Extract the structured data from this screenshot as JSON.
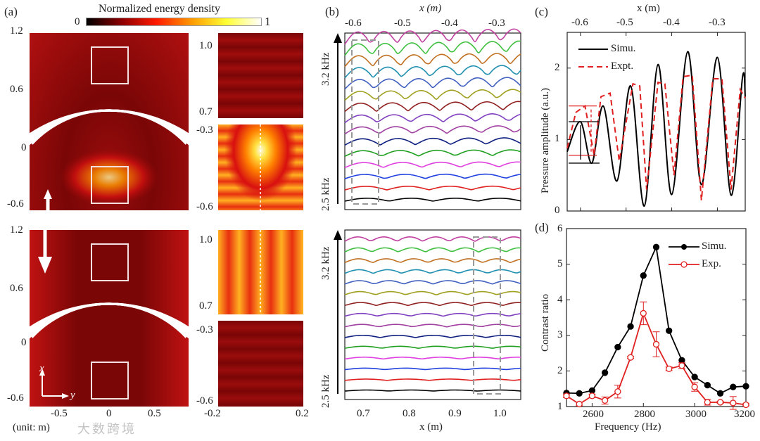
{
  "panel_labels": {
    "a": "(a)",
    "b": "(b)",
    "c": "(c)",
    "d": "(d)"
  },
  "colorbar": {
    "title": "Normalized energy density",
    "min": "0",
    "max": "1",
    "colors": [
      "#000000",
      "#8b0000",
      "#ff1a00",
      "#ff9900",
      "#ffff33",
      "#ffffff"
    ]
  },
  "panel_a": {
    "top_y_ticks": [
      "1.2",
      "0.6",
      "0",
      "-0.6"
    ],
    "bottom_y_ticks": [
      "1.2",
      "0.6",
      "0",
      "-0.6"
    ],
    "x_ticks": [
      "-0.5",
      "0",
      "0.5"
    ],
    "unit_label": "(unit: m)",
    "axis_x": "x",
    "axis_y": "y",
    "zoom_top_upper_ticks": [
      "1.0",
      "0.7"
    ],
    "zoom_top_lower_ticks": [
      "-0.3",
      "-0.6"
    ],
    "zoom_bottom_upper_ticks": [
      "1.0",
      "0.7"
    ],
    "zoom_bottom_lower_ticks": [
      "-0.3",
      "-0.6"
    ],
    "zoom_x_ticks": [
      "-0.2",
      "0.2"
    ]
  },
  "panel_b": {
    "top_x_label": "x (m)",
    "top_x_ticks": [
      "-0.6",
      "-0.5",
      "-0.4",
      "-0.3"
    ],
    "bottom_x_label": "x (m)",
    "bottom_x_ticks": [
      "0.7",
      "0.8",
      "0.9",
      "1.0"
    ],
    "freq_high": "3.2 kHz",
    "freq_low": "2.5 kHz",
    "line_colors": [
      "#000000",
      "#e02020",
      "#2040e0",
      "#e040e0",
      "#20a020",
      "#102080",
      "#a040a0",
      "#8040c0",
      "#902020",
      "#a0a020",
      "#4060c0",
      "#2090b0",
      "#c07020",
      "#40c040",
      "#c040a0"
    ]
  },
  "watermark": "大数跨境",
  "chart_data": [
    {
      "id": "c",
      "type": "line",
      "title": "",
      "xlabel": "x (m)",
      "ylabel": "Pressure amplitude (a.u.)",
      "xlim": [
        -0.629,
        -0.239
      ],
      "ylim": [
        0,
        2.5
      ],
      "x_ticks": [
        "-0.6",
        "-0.5",
        "-0.4",
        "-0.3"
      ],
      "x_tick_values": [
        -0.6,
        -0.5,
        -0.4,
        -0.3
      ],
      "y_ticks": [
        "0",
        "1",
        "2"
      ],
      "y_tick_values": [
        0,
        1,
        2
      ],
      "legend_position": "top-left",
      "series": [
        {
          "name": "Simu.",
          "color": "#000000",
          "style": "solid",
          "x": [
            -0.629,
            -0.6,
            -0.575,
            -0.55,
            -0.52,
            -0.49,
            -0.46,
            -0.43,
            -0.4,
            -0.365,
            -0.335,
            -0.3,
            -0.27,
            -0.245,
            -0.239
          ],
          "y": [
            0.83,
            1.25,
            0.67,
            1.47,
            0.42,
            1.75,
            0.07,
            2.05,
            0.23,
            2.23,
            0.37,
            2.15,
            0.22,
            1.87,
            1.6
          ]
        },
        {
          "name": "Expt.",
          "color": "#e02020",
          "style": "dashed",
          "x": [
            -0.629,
            -0.61,
            -0.59,
            -0.57,
            -0.555,
            -0.535,
            -0.515,
            -0.485,
            -0.47,
            -0.455,
            -0.43,
            -0.415,
            -0.395,
            -0.375,
            -0.355,
            -0.335,
            -0.31,
            -0.29,
            -0.27,
            -0.25,
            -0.239
          ],
          "y": [
            0.88,
            1.38,
            1.47,
            0.78,
            1.6,
            1.65,
            0.7,
            1.78,
            1.75,
            0.3,
            1.8,
            1.78,
            0.5,
            1.88,
            1.9,
            0.15,
            1.85,
            1.85,
            0.3,
            1.7,
            1.58
          ]
        }
      ]
    },
    {
      "id": "d",
      "type": "line",
      "title": "",
      "xlabel": "Frequency (Hz)",
      "ylabel": "Contrast ratio",
      "xlim": [
        2500,
        3200
      ],
      "ylim": [
        1,
        6
      ],
      "x_ticks": [
        "2600",
        "2800",
        "3000",
        "3200"
      ],
      "x_tick_values": [
        2600,
        2800,
        3000,
        3200
      ],
      "y_ticks": [
        "1",
        "2",
        "3",
        "4",
        "5",
        "6"
      ],
      "y_tick_values": [
        1,
        2,
        3,
        4,
        5,
        6
      ],
      "legend_position": "top-right",
      "x": [
        2500,
        2550,
        2600,
        2650,
        2700,
        2750,
        2800,
        2850,
        2900,
        2950,
        3000,
        3050,
        3100,
        3150,
        3200
      ],
      "series": [
        {
          "name": "Simu.",
          "color": "#000000",
          "marker": "filled-circle",
          "values": [
            1.38,
            1.37,
            1.45,
            1.95,
            2.67,
            3.25,
            4.68,
            5.48,
            3.13,
            2.3,
            1.83,
            1.6,
            1.37,
            1.55,
            1.57
          ]
        },
        {
          "name": "Exp.",
          "color": "#e02020",
          "marker": "open-circle",
          "values": [
            1.3,
            1.07,
            1.3,
            1.17,
            1.42,
            2.38,
            3.62,
            2.75,
            2.06,
            2.15,
            1.55,
            1.12,
            1.12,
            1.1,
            1.05
          ],
          "errors": [
            0.05,
            0.05,
            0.05,
            0.1,
            0.18,
            0.03,
            0.32,
            0.35,
            0.05,
            0.08,
            0.12,
            0.08,
            0.03,
            0.18,
            0.03
          ]
        }
      ]
    }
  ]
}
